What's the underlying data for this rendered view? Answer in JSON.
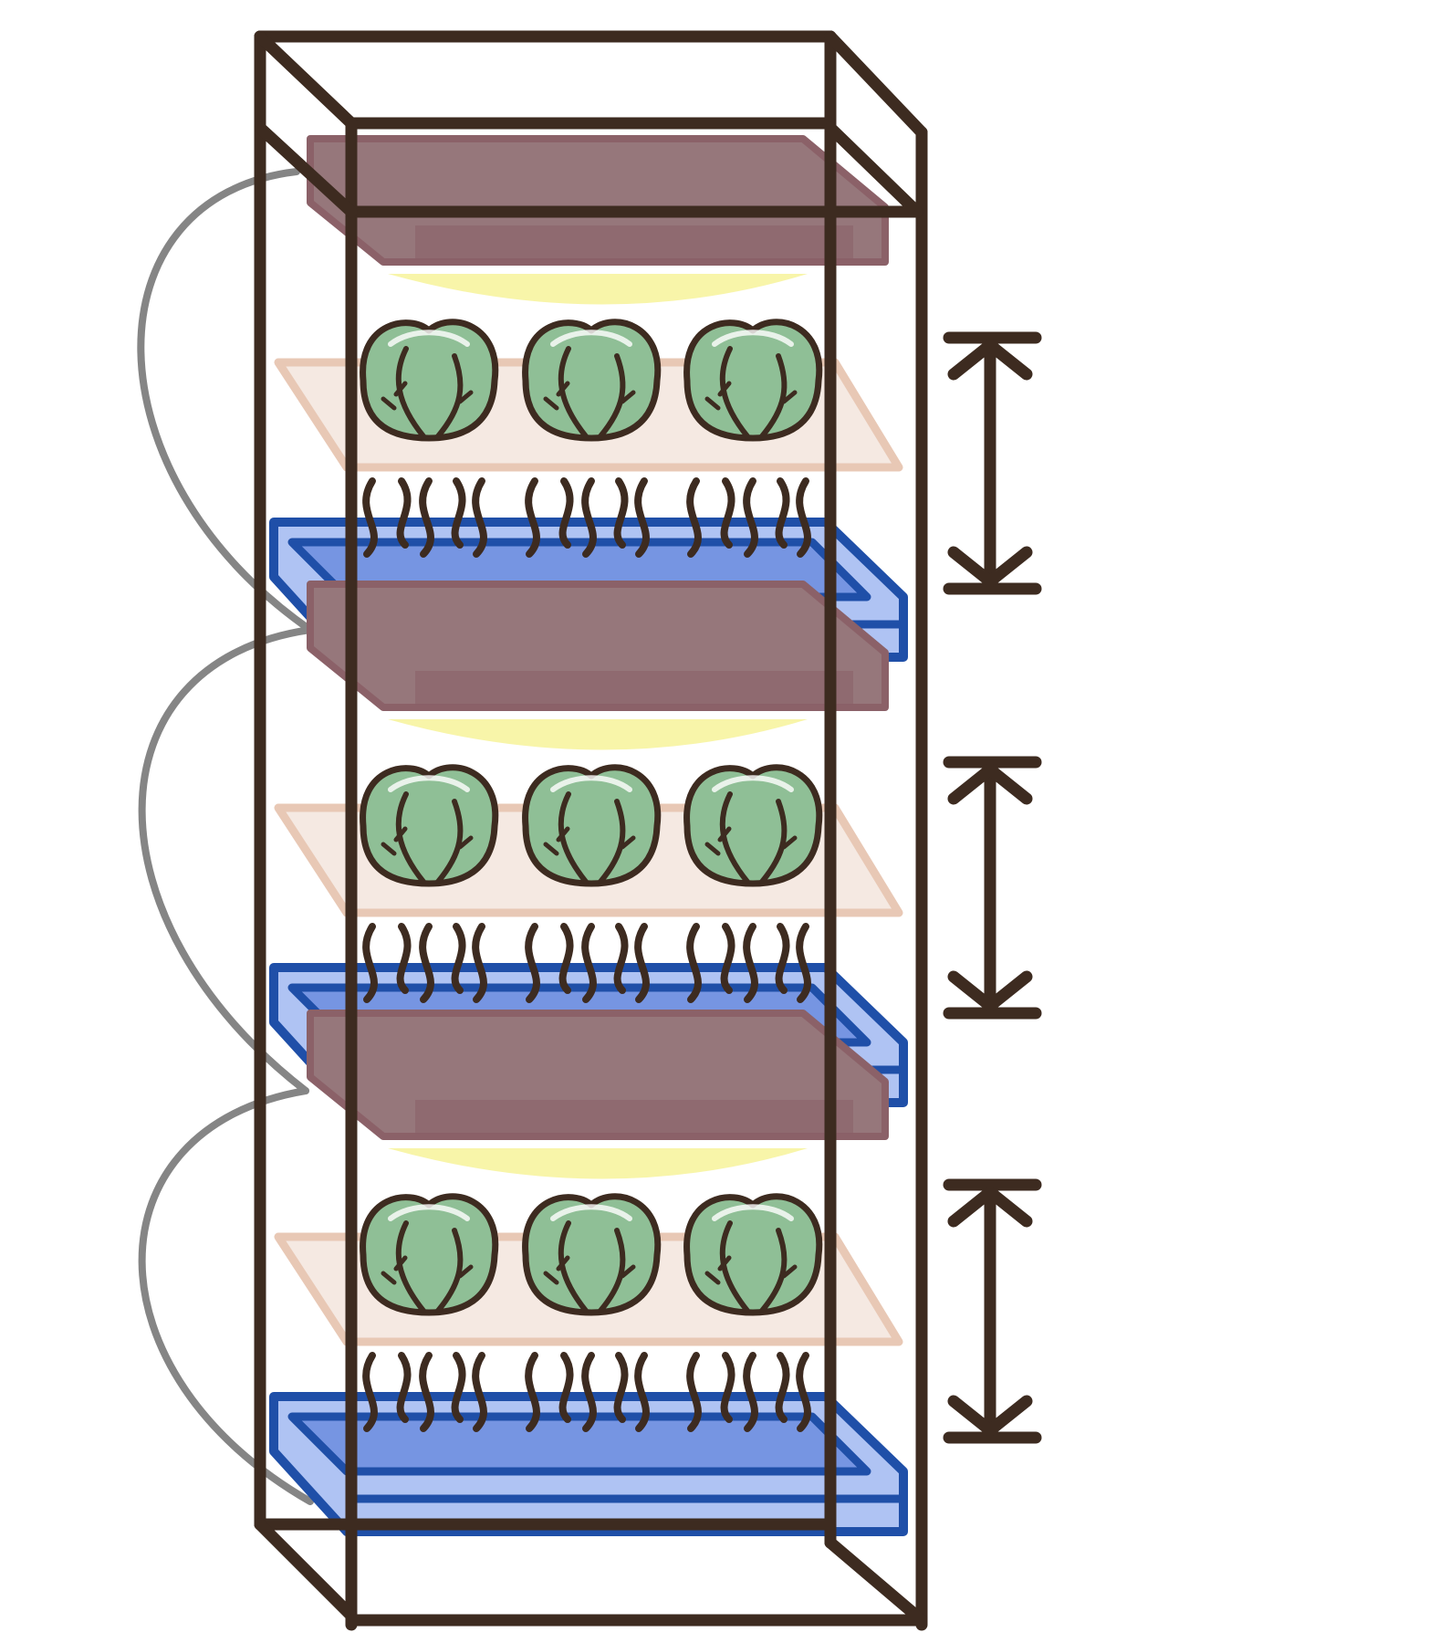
{
  "diagram": {
    "subject": "vertical-hydroponic-rack",
    "tier_count": 3,
    "plants_per_tier": 3,
    "roots_per_plant": 5,
    "height_markers": 3,
    "colors": {
      "frame": "#3d2b20",
      "light_fixture": "#96777b",
      "light_fixture_edge": "#8b6168",
      "light_glow": "#f7f39a",
      "grow_tray": "#f5e9e2",
      "grow_tray_edge": "#e8c8b5",
      "plant_fill": "#8fbf96",
      "plant_outline": "#3d2b20",
      "reservoir_light": "#afc3f3",
      "reservoir_mid": "#7695e2",
      "reservoir_edge": "#1f4fa8",
      "pipe": "#858585",
      "marker": "#3d2b20"
    }
  }
}
